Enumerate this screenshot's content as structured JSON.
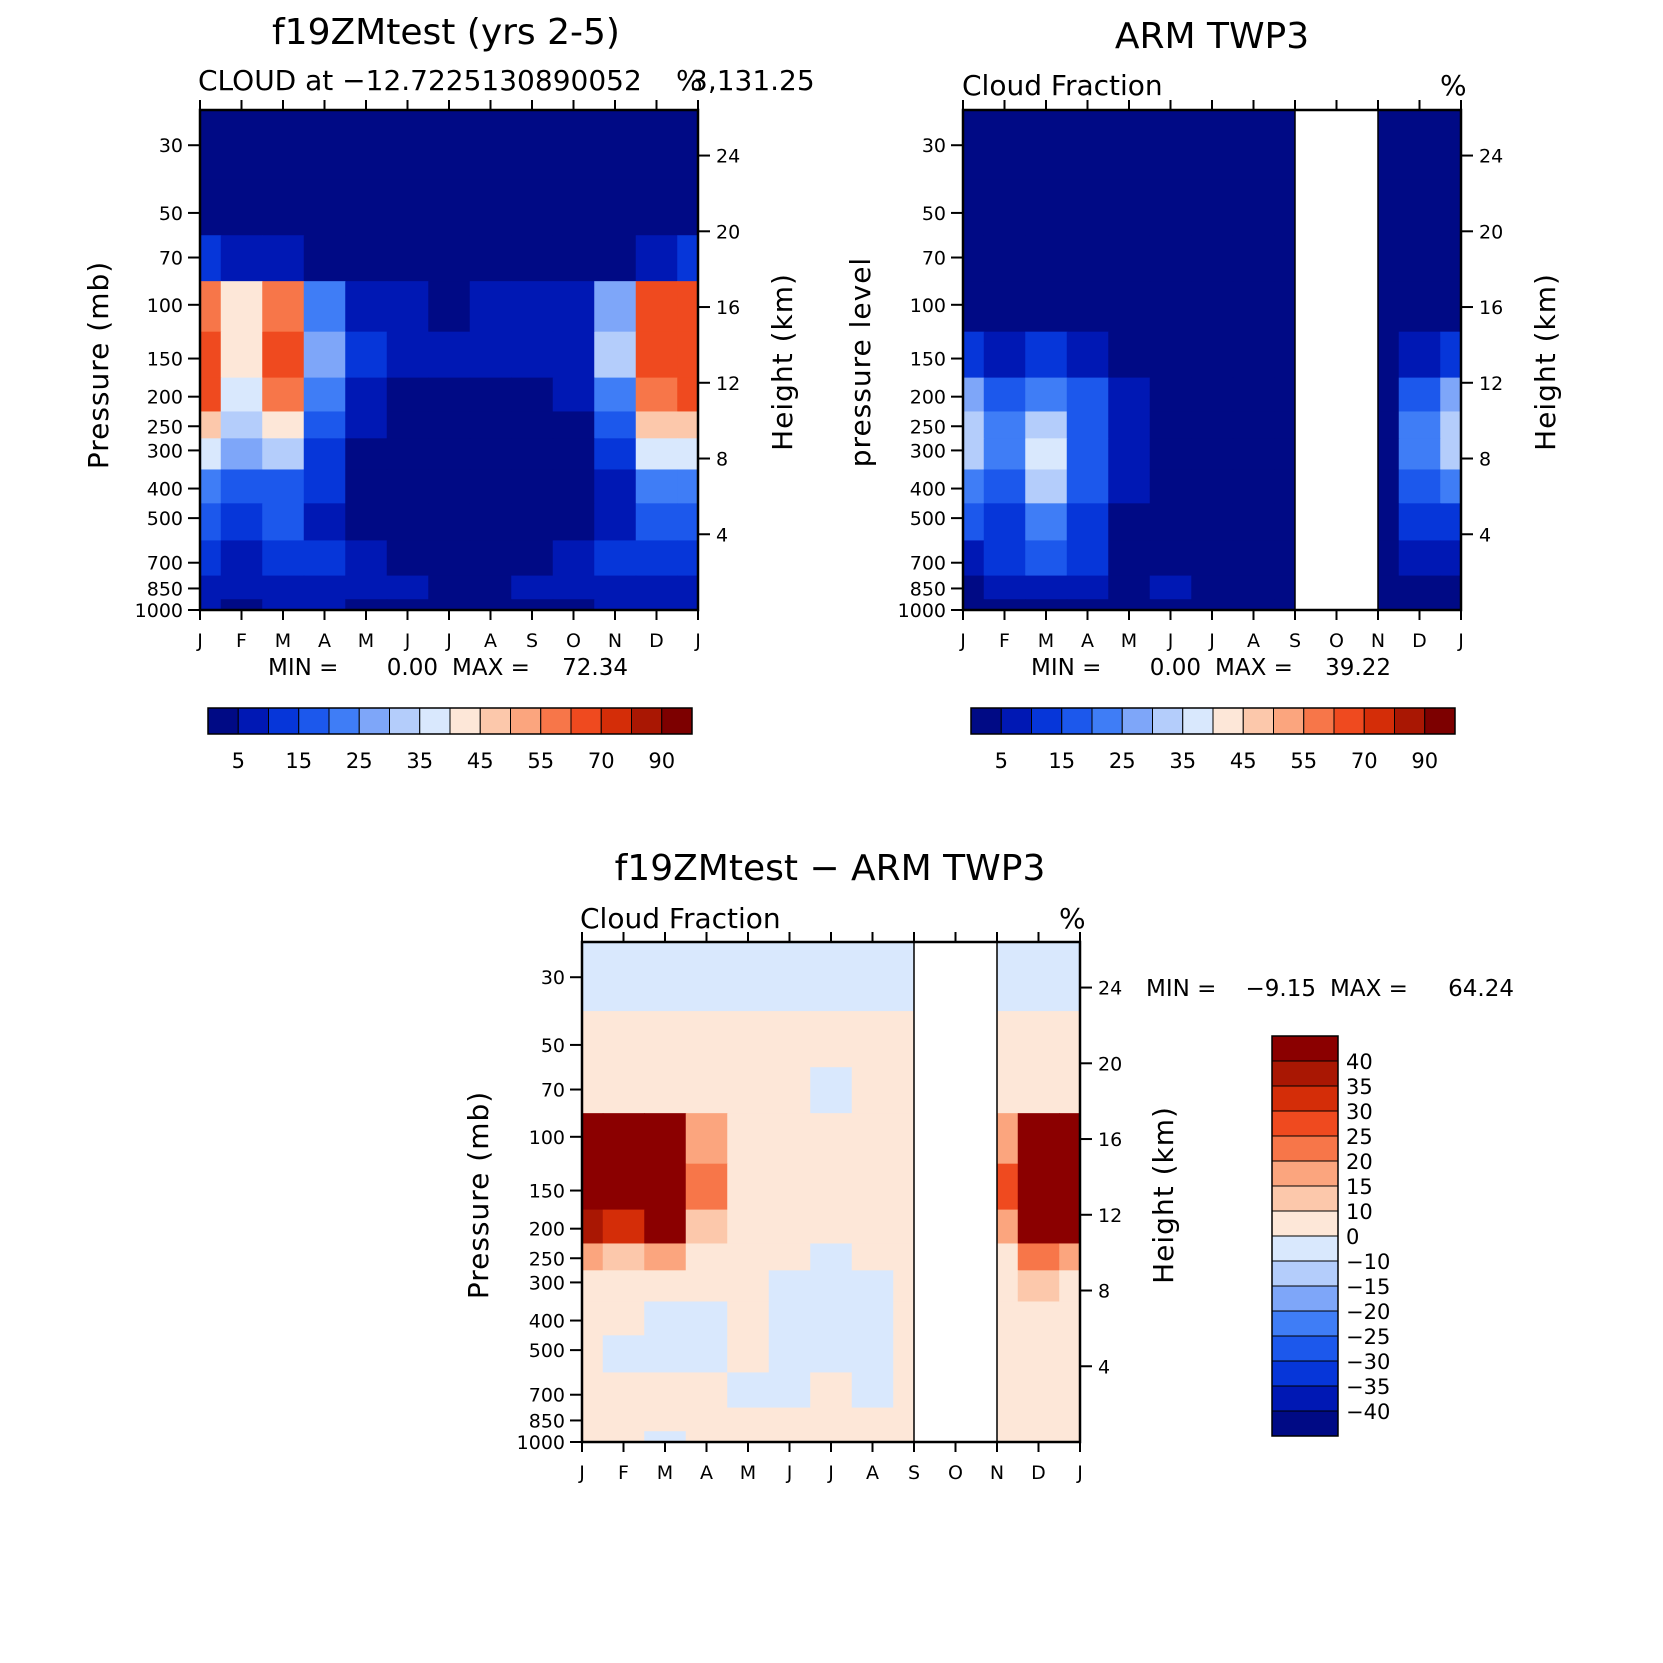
{
  "colors": {
    "seq": [
      "#000a85",
      "#0018b4",
      "#0636d9",
      "#1c58ec",
      "#3f7df6",
      "#7ea6f9",
      "#b4cdfb",
      "#d9e8fd",
      "#fde7d8",
      "#fcc8ab",
      "#fba57e",
      "#f77649",
      "#ef4a1f",
      "#d42d08",
      "#a91703",
      "#7d0000"
    ],
    "diff": [
      "#000a85",
      "#0018b4",
      "#0636d9",
      "#1c58ec",
      "#3f7df6",
      "#7ea6f9",
      "#b4cdfb",
      "#d9e8fd",
      "#fde7d8",
      "#fcc8ab",
      "#fba57e",
      "#f77649",
      "#ef4a1f",
      "#d42d08",
      "#a91703",
      "#8b0000"
    ]
  },
  "shared": {
    "months": [
      "J",
      "F",
      "M",
      "A",
      "M",
      "J",
      "J",
      "A",
      "S",
      "O",
      "N",
      "D",
      "J"
    ],
    "pressure_ticks": [
      "30",
      "50",
      "70",
      "100",
      "150",
      "200",
      "250",
      "300",
      "400",
      "500",
      "700",
      "850",
      "1000"
    ],
    "height_ticks": [
      "24",
      "20",
      "16",
      "12",
      "8",
      "4"
    ],
    "seq_colorbar_labels": [
      "5",
      "15",
      "25",
      "35",
      "45",
      "55",
      "70",
      "90"
    ],
    "diff_colorbar_labels": [
      "40",
      "35",
      "30",
      "25",
      "20",
      "15",
      "10",
      "0",
      "-10",
      "-15",
      "-20",
      "-25",
      "-30",
      "-35",
      "-40"
    ]
  },
  "panels": {
    "model": {
      "title": "f19ZMtest (yrs 2-5)",
      "subtitle": "CLOUD at -12.7225130890052",
      "subtitle_suffix": "3,131.25",
      "unit": "%",
      "ylabel_left": "Pressure (mb)",
      "ylabel_right": "Height (km)",
      "min_label": "MIN =",
      "min_value": "0.00",
      "max_label": "MAX =",
      "max_value": "72.34"
    },
    "obs": {
      "title": "ARM TWP3",
      "subtitle": "Cloud Fraction",
      "unit": "%",
      "ylabel_left": "pressure level",
      "ylabel_right": "Height (km)",
      "min_label": "MIN =",
      "min_value": "0.00",
      "max_label": "MAX =",
      "max_value": "39.22"
    },
    "diff": {
      "title": "f19ZMtest - ARM TWP3",
      "subtitle": "Cloud Fraction",
      "unit": "%",
      "ylabel_left": "Pressure (mb)",
      "ylabel_right": "Height (km)",
      "min_label": "MIN =",
      "min_value": "-9.15",
      "max_label": "MAX =",
      "max_value": "64.24"
    }
  },
  "chart_data": [
    {
      "type": "heatmap",
      "title": "f19ZMtest (yrs 2-5)",
      "subtitle": "CLOUD at -12.7225130890052 3,131.25",
      "xlabel": "",
      "ylabel": "Pressure (mb)",
      "ylabel_right": "Height (km)",
      "x": [
        "J",
        "F",
        "M",
        "A",
        "M",
        "J",
        "J",
        "A",
        "S",
        "O",
        "N",
        "D",
        "J"
      ],
      "y": [
        30,
        50,
        70,
        100,
        150,
        200,
        250,
        300,
        400,
        500,
        700,
        850,
        1000
      ],
      "y_scale": "log",
      "levels": [
        5,
        10,
        15,
        20,
        25,
        30,
        35,
        40,
        45,
        50,
        55,
        60,
        70,
        80,
        90
      ],
      "min": 0.0,
      "max": 72.34,
      "values": [
        [
          0,
          0,
          0,
          0,
          0,
          0,
          0,
          0,
          0,
          0,
          0,
          0,
          0
        ],
        [
          0,
          0,
          0,
          0,
          0,
          0,
          0,
          0,
          0,
          0,
          0,
          0,
          0
        ],
        [
          10,
          7,
          5,
          3,
          2,
          1,
          1,
          1,
          1,
          1,
          3,
          7,
          10
        ],
        [
          58,
          40,
          55,
          20,
          9,
          5,
          4,
          5,
          6,
          8,
          25,
          60,
          60
        ],
        [
          68,
          42,
          62,
          25,
          10,
          6,
          5,
          5,
          6,
          8,
          30,
          62,
          65
        ],
        [
          60,
          38,
          55,
          22,
          8,
          4,
          1,
          1,
          1,
          5,
          22,
          58,
          60
        ],
        [
          45,
          30,
          42,
          15,
          5,
          2,
          1,
          1,
          1,
          3,
          15,
          45,
          48
        ],
        [
          35,
          25,
          30,
          12,
          4,
          1,
          0,
          0,
          0,
          2,
          10,
          35,
          38
        ],
        [
          20,
          15,
          18,
          10,
          4,
          1,
          0,
          0,
          0,
          2,
          8,
          20,
          22
        ],
        [
          15,
          12,
          15,
          8,
          4,
          1,
          0,
          0,
          0,
          3,
          8,
          15,
          15
        ],
        [
          12,
          8,
          12,
          10,
          6,
          3,
          2,
          2,
          3,
          5,
          10,
          12,
          12
        ],
        [
          8,
          6,
          8,
          8,
          6,
          5,
          4,
          4,
          5,
          6,
          8,
          8,
          8
        ],
        [
          5,
          4,
          5,
          5,
          4,
          4,
          4,
          4,
          4,
          4,
          5,
          5,
          5
        ]
      ]
    },
    {
      "type": "heatmap",
      "title": "ARM TWP3",
      "subtitle": "Cloud Fraction",
      "ylabel": "pressure level",
      "ylabel_right": "Height (km)",
      "x": [
        "J",
        "F",
        "M",
        "A",
        "M",
        "J",
        "J",
        "A",
        "S",
        "O",
        "N",
        "D",
        "J"
      ],
      "y": [
        30,
        50,
        70,
        100,
        150,
        200,
        250,
        300,
        400,
        500,
        700,
        850,
        1000
      ],
      "y_scale": "log",
      "levels": [
        5,
        10,
        15,
        20,
        25,
        30,
        35,
        40,
        45,
        50,
        55,
        60,
        70,
        80,
        90
      ],
      "missing_months": [
        "O"
      ],
      "min": 0.0,
      "max": 39.22,
      "values": [
        [
          0,
          0,
          0,
          0,
          0,
          0,
          0,
          0,
          0,
          null,
          0,
          0,
          0
        ],
        [
          0,
          0,
          0,
          0,
          0,
          0,
          0,
          0,
          0,
          null,
          0,
          0,
          0
        ],
        [
          0,
          0,
          0,
          0,
          0,
          0,
          0,
          0,
          0,
          null,
          0,
          0,
          0
        ],
        [
          3,
          2,
          2,
          1,
          0,
          0,
          0,
          0,
          0,
          null,
          0,
          2,
          3
        ],
        [
          10,
          8,
          10,
          6,
          2,
          0,
          0,
          0,
          0,
          null,
          0,
          8,
          10
        ],
        [
          25,
          18,
          22,
          15,
          5,
          0,
          0,
          0,
          0,
          null,
          0,
          18,
          28
        ],
        [
          32,
          20,
          30,
          18,
          6,
          0,
          0,
          0,
          0,
          null,
          0,
          20,
          32
        ],
        [
          30,
          20,
          35,
          18,
          5,
          0,
          0,
          0,
          0,
          null,
          0,
          20,
          30
        ],
        [
          22,
          18,
          30,
          15,
          5,
          0,
          0,
          0,
          0,
          null,
          0,
          15,
          20
        ],
        [
          15,
          12,
          22,
          12,
          4,
          0,
          0,
          0,
          0,
          null,
          0,
          10,
          12
        ],
        [
          8,
          10,
          15,
          10,
          3,
          2,
          1,
          0,
          0,
          null,
          0,
          6,
          6
        ],
        [
          4,
          6,
          8,
          6,
          3,
          5,
          3,
          0,
          0,
          null,
          0,
          3,
          3
        ],
        [
          2,
          3,
          4,
          3,
          2,
          2,
          1,
          0,
          0,
          null,
          0,
          2,
          2
        ]
      ]
    },
    {
      "type": "heatmap",
      "title": "f19ZMtest - ARM TWP3",
      "subtitle": "Cloud Fraction",
      "ylabel": "Pressure (mb)",
      "ylabel_right": "Height (km)",
      "x": [
        "J",
        "F",
        "M",
        "A",
        "M",
        "J",
        "J",
        "A",
        "S",
        "O",
        "N",
        "D",
        "J"
      ],
      "y": [
        30,
        50,
        70,
        100,
        150,
        200,
        250,
        300,
        400,
        500,
        700,
        850,
        1000
      ],
      "y_scale": "log",
      "levels": [
        -40,
        -35,
        -30,
        -25,
        -20,
        -15,
        -10,
        0,
        10,
        15,
        20,
        25,
        30,
        35,
        40
      ],
      "missing_months": [
        "O"
      ],
      "min": -9.15,
      "max": 64.24,
      "values": [
        [
          -1,
          -1,
          -1,
          -1,
          -1,
          -1,
          -1,
          -1,
          -1,
          null,
          -1,
          -1,
          -1
        ],
        [
          1,
          1,
          1,
          1,
          1,
          1,
          1,
          1,
          1,
          null,
          1,
          1,
          1
        ],
        [
          5,
          5,
          3,
          2,
          1,
          1,
          -1,
          1,
          1,
          null,
          1,
          5,
          6
        ],
        [
          55,
          45,
          50,
          18,
          5,
          3,
          2,
          3,
          3,
          null,
          15,
          55,
          55
        ],
        [
          58,
          48,
          60,
          22,
          6,
          3,
          2,
          3,
          3,
          null,
          25,
          60,
          58
        ],
        [
          38,
          30,
          40,
          12,
          4,
          2,
          2,
          2,
          2,
          null,
          15,
          45,
          40
        ],
        [
          15,
          12,
          15,
          5,
          2,
          1,
          -1,
          1,
          1,
          null,
          5,
          20,
          15
        ],
        [
          5,
          5,
          5,
          3,
          1,
          -1,
          -1,
          -1,
          1,
          null,
          1,
          12,
          5
        ],
        [
          3,
          3,
          -1,
          -1,
          1,
          -1,
          -1,
          -1,
          1,
          null,
          1,
          5,
          3
        ],
        [
          1,
          -1,
          -1,
          -1,
          1,
          -1,
          -1,
          -1,
          1,
          null,
          1,
          3,
          1
        ],
        [
          1,
          1,
          1,
          1,
          -1,
          -1,
          1,
          -1,
          1,
          null,
          1,
          2,
          1
        ],
        [
          1,
          1,
          1,
          1,
          1,
          1,
          1,
          1,
          1,
          null,
          1,
          1,
          1
        ],
        [
          1,
          1,
          -1,
          1,
          1,
          1,
          1,
          1,
          1,
          null,
          1,
          1,
          1
        ]
      ]
    }
  ]
}
